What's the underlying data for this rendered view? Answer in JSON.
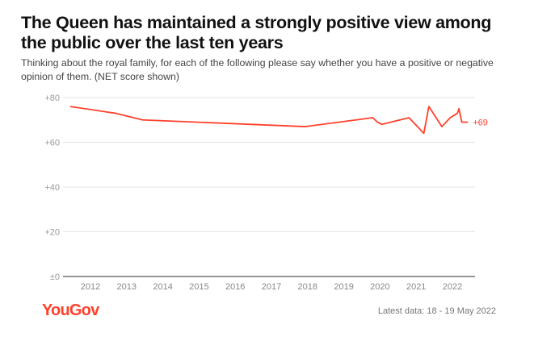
{
  "title": "The Queen has maintained a strongly positive view among the public over the last ten years",
  "subtitle": "Thinking about the royal family, for each of the following please say whether you have a positive or negative opinion of them. (NET score shown)",
  "footer": {
    "logo": "YouGov",
    "latest": "Latest data: 18 - 19 May 2022"
  },
  "colors": {
    "line": "#ff412c",
    "brand": "#ff412c"
  },
  "chart_data": {
    "type": "line",
    "ylim": [
      0,
      80
    ],
    "xlim": [
      2011.2,
      2022.6
    ],
    "grid": true,
    "y_ticks": [
      {
        "v": 0,
        "label": "±0"
      },
      {
        "v": 20,
        "label": "+20"
      },
      {
        "v": 40,
        "label": "+40"
      },
      {
        "v": 60,
        "label": "+60"
      },
      {
        "v": 80,
        "label": "+80"
      }
    ],
    "x_ticks": [
      "2012",
      "2013",
      "2014",
      "2015",
      "2016",
      "2017",
      "2018",
      "2019",
      "2020",
      "2021",
      "2022"
    ],
    "end_label": "+69",
    "series": [
      {
        "x": [
          2011.44,
          2012.68,
          2013.44,
          2017.93,
          2019.8,
          2019.93,
          2020.05,
          2020.8,
          2021.21,
          2021.35,
          2021.71,
          2021.94,
          2022.14,
          2022.18,
          2022.26,
          2022.43
        ],
        "values": [
          76,
          73,
          70,
          67,
          71,
          69,
          68,
          71,
          64,
          76,
          67,
          71,
          73,
          75,
          69,
          69
        ]
      }
    ]
  }
}
